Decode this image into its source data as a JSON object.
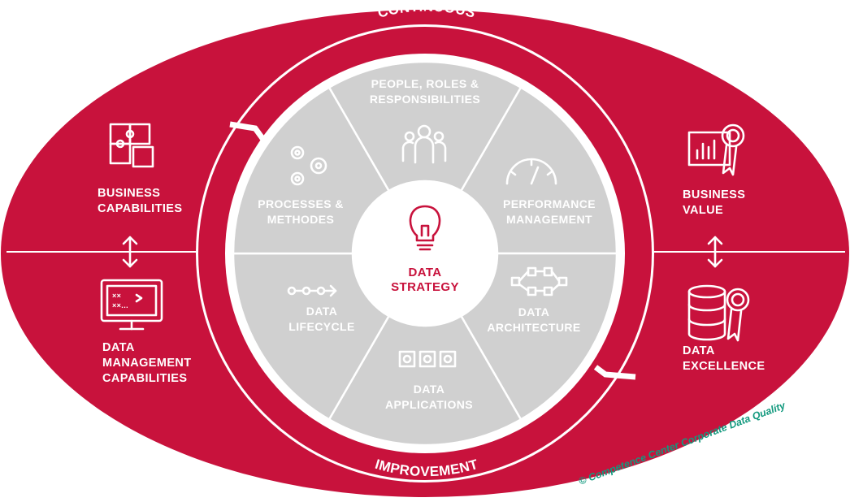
{
  "colors": {
    "accent": "#c8123c",
    "segment": "#d0d0d0",
    "segment_line": "#ffffff",
    "center": "#ffffff",
    "copyright": "#12997e"
  },
  "ring": {
    "top_label": "CONTINUOUS",
    "bottom_label": "IMPROVEMENT"
  },
  "center": {
    "line1": "DATA",
    "line2": "STRATEGY",
    "icon": "lightbulb-icon"
  },
  "segments": [
    {
      "lines": [
        "PEOPLE, ROLES &",
        "RESPONSIBILITIES"
      ],
      "icon": "people-icon"
    },
    {
      "lines": [
        "PERFORMANCE",
        "MANAGEMENT"
      ],
      "icon": "gauge-icon"
    },
    {
      "lines": [
        "DATA",
        "ARCHITECTURE"
      ],
      "icon": "architecture-icon"
    },
    {
      "lines": [
        "DATA",
        "APPLICATIONS"
      ],
      "icon": "applications-icon"
    },
    {
      "lines": [
        "DATA",
        "LIFECYCLE"
      ],
      "icon": "lifecycle-icon"
    },
    {
      "lines": [
        "PROCESSES &",
        "METHODES"
      ],
      "icon": "gears-icon"
    }
  ],
  "left": {
    "top": {
      "lines": [
        "BUSINESS",
        "CAPABILITIES"
      ],
      "icon": "puzzle-icon"
    },
    "bottom": {
      "lines": [
        "DATA",
        "MANAGEMENT",
        "CAPABILITIES"
      ],
      "icon": "monitor-icon"
    },
    "arrow": "double-arrow-icon"
  },
  "right": {
    "top": {
      "lines": [
        "BUSINESS",
        "VALUE"
      ],
      "icon": "chart-award-icon"
    },
    "bottom": {
      "lines": [
        "DATA",
        "EXCELLENCE"
      ],
      "icon": "database-award-icon"
    },
    "arrow": "double-arrow-icon"
  },
  "copyright": "© Competence Center Corporate Data Quality"
}
